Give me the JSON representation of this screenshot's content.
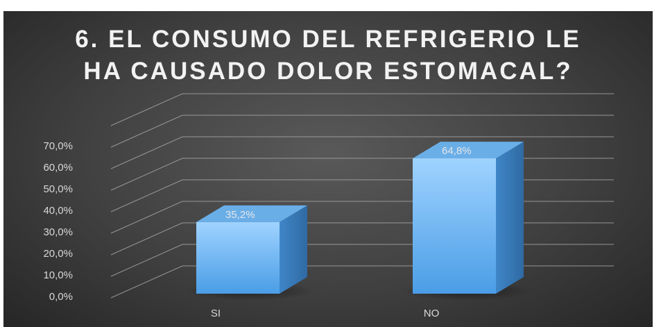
{
  "chart_data": {
    "type": "bar",
    "title": "6. EL CONSUMO DEL REFRIGERIO LE HA CAUSADO DOLOR ESTOMACAL?",
    "title_lines": [
      "6. EL CONSUMO DEL REFRIGERIO LE",
      "HA CAUSADO DOLOR ESTOMACAL?"
    ],
    "categories": [
      "SI",
      "NO"
    ],
    "values": [
      35.2,
      64.8
    ],
    "data_labels": [
      "35,2%",
      "64,8%"
    ],
    "y_ticks": [
      "0,0%",
      "10,0%",
      "20,0%",
      "30,0%",
      "40,0%",
      "50,0%",
      "60,0%",
      "70,0%"
    ],
    "ylim": [
      0,
      70
    ],
    "xlabel": "",
    "ylabel": "",
    "grid": true,
    "legend": "none",
    "style": "3d-column",
    "colors": {
      "bar_front_top": "#9fd3ff",
      "bar_front_bottom": "#4a9de6",
      "bar_side": "#3a78b5",
      "bar_top": "#6aaee8",
      "background": "#404040",
      "grid": "#a6a6a6"
    }
  }
}
